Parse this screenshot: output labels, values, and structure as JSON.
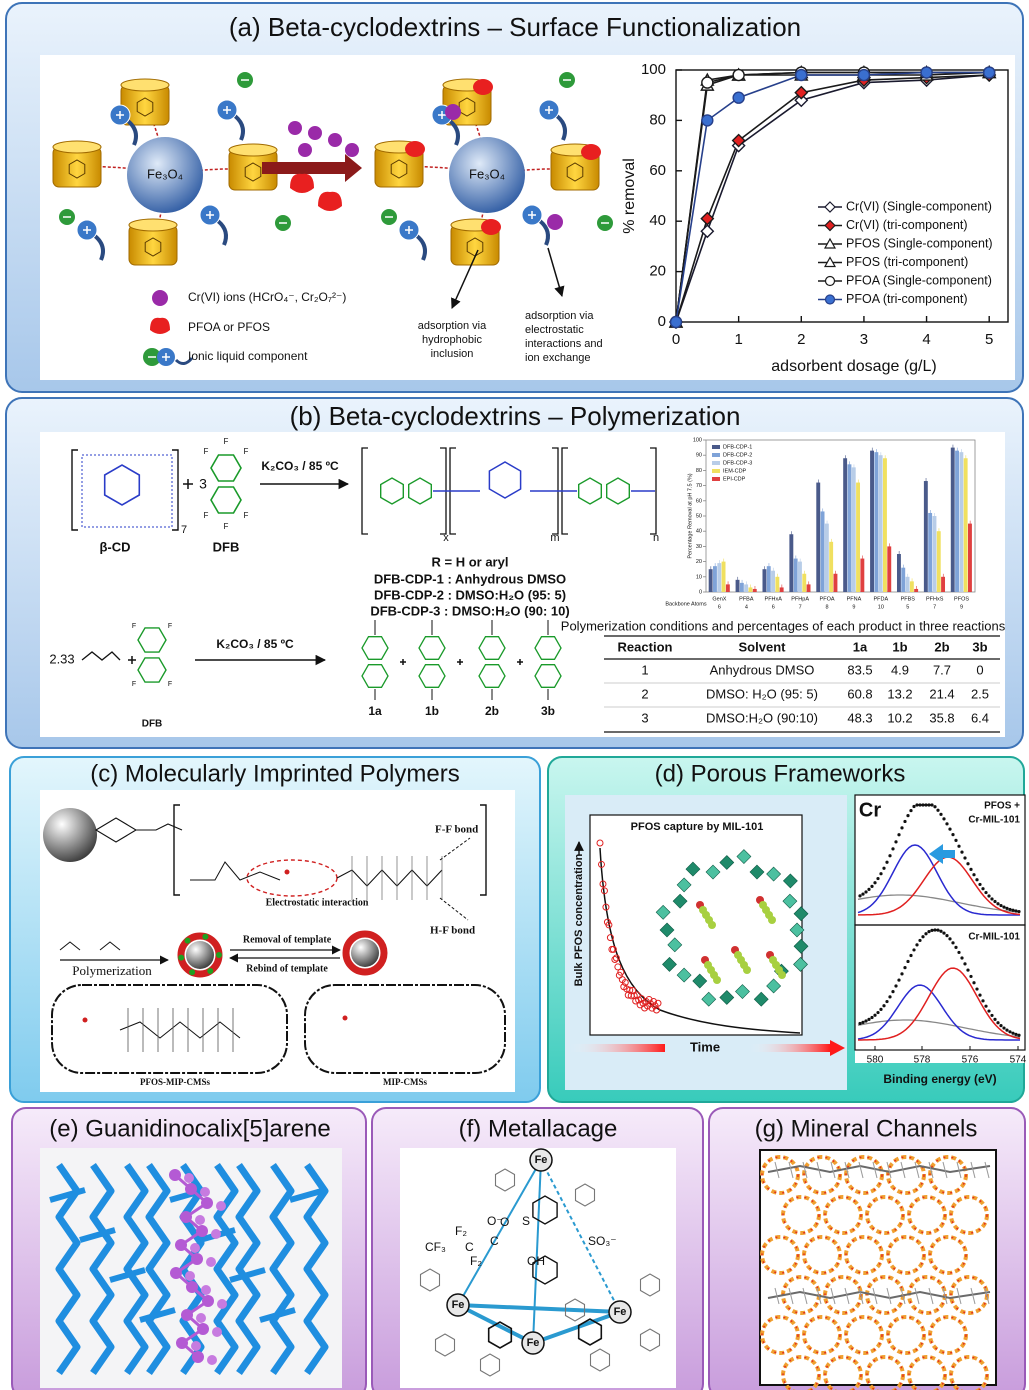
{
  "panels": {
    "a": {
      "title": "(a) Beta-cyclodextrins – Surface Functionalization",
      "core_label": "Fe₃O₄",
      "key": [
        "Cr(VI) ions (HCrO₄⁻, Cr₂O₇²⁻)",
        "PFOA or PFOS",
        "Ionic liquid component"
      ],
      "note_left": [
        "adsorption via",
        "hydrophobic",
        "inclusion"
      ],
      "note_right": [
        "adsorption via",
        "electrostatic",
        "interactions and",
        "ion exchange"
      ]
    },
    "b": {
      "title": "(b) Beta-cyclodextrins – Polymerization",
      "condition": "K₂CO₃ / 85 ºC",
      "reagent_1": "β-CD",
      "reagent_2": "DFB",
      "coefficient_1": "3",
      "coefficient_2": "2.33",
      "subscripts": [
        "7",
        "x",
        "m",
        "n"
      ],
      "atom_f": "F",
      "r_group": "R = H or aryl",
      "variants": [
        "DFB-CDP-1 : Anhydrous DMSO",
        "DFB-CDP-2 : DMSO:H₂O (95: 5)",
        "DFB-CDP-3 : DMSO:H₂O (90: 10)"
      ],
      "products": [
        "1a",
        "1b",
        "2b",
        "3b"
      ],
      "table": {
        "caption": "Polymerization conditions and percentages of each product in three reactions",
        "header": [
          "Reaction",
          "Solvent",
          "1a",
          "1b",
          "2b",
          "3b"
        ],
        "rows": [
          [
            1,
            "Anhydrous DMSO",
            83.5,
            4.9,
            7.7,
            0
          ],
          [
            2,
            "DMSO: H₂O (95: 5)",
            60.8,
            13.2,
            21.4,
            2.5
          ],
          [
            3,
            "DMSO:H₂O (90:10)",
            48.3,
            10.2,
            35.8,
            6.4
          ]
        ]
      }
    },
    "c": {
      "title": "(c) Molecularly Imprinted Polymers",
      "ff_bond": "F-F bond",
      "hf_bond": "H-F bond",
      "electrostatic": "Electrostatic interaction",
      "polymerization": "Polymerization",
      "removal": "Removal of template",
      "rebind": "Rebind of template",
      "left_product": "PFOS-MIP-CMSs",
      "right_product": "MIP-CMSs"
    },
    "d": {
      "title": "(d) Porous Frameworks",
      "inset_title": "PFOS capture by MIL-101",
      "inset_ylabel": "Bulk PFOS concentration",
      "inset_xlabel": "Time",
      "element": "Cr",
      "top_label": [
        "PFOS +",
        "Cr-MIL-101"
      ],
      "bottom_label": "Cr-MIL-101",
      "xps_ticks": [
        "580",
        "578",
        "576",
        "574"
      ],
      "xps_xlabel": "Binding energy  (eV)"
    },
    "e": {
      "title": "(e) Guanidinocalix[5]arene"
    },
    "f": {
      "title": "(f) Metallacage",
      "metal": "Fe",
      "sulfonate": "SO₃⁻",
      "chain_labels": [
        "CF₃",
        "F₂",
        "C",
        "F₂",
        "C",
        "O",
        "OH",
        "O⁻",
        "S"
      ]
    },
    "g": {
      "title": "(g) Mineral Channels"
    }
  },
  "chart_data": [
    {
      "type": "line",
      "xlabel": "adsorbent dosage (g/L)",
      "ylabel": "% removal",
      "x": [
        0,
        0.5,
        1,
        2,
        3,
        4,
        5
      ],
      "xlim": [
        0,
        5.3
      ],
      "ylim": [
        0,
        100
      ],
      "xticks": [
        0,
        1,
        2,
        3,
        4,
        5
      ],
      "yticks": [
        0,
        20,
        40,
        60,
        80,
        100
      ],
      "series": [
        {
          "name": "Cr(VI) (Single-component)",
          "color": "#1a1a2e",
          "marker": "diamond",
          "marker_fill": "#ffffff",
          "values": [
            0,
            36,
            70,
            88,
            95,
            96,
            98
          ]
        },
        {
          "name": "Cr(VI) (tri-component)",
          "color": "#1a1a1a",
          "marker": "diamond",
          "marker_fill": "#e02020",
          "values": [
            0,
            41,
            72,
            91,
            96,
            97,
            98
          ]
        },
        {
          "name": "PFOS (Single-component)",
          "color": "#1a1a1a",
          "marker": "triangle",
          "marker_fill": "#ffffff",
          "values": [
            0,
            96,
            98,
            98,
            98,
            98,
            99
          ]
        },
        {
          "name": "PFOS (tri-component)",
          "color": "#1a1a1a",
          "marker": "triangle",
          "marker_fill": "#ffffff",
          "values": [
            0,
            94,
            98,
            99,
            99,
            99,
            99
          ]
        },
        {
          "name": "PFOA (Single-component)",
          "color": "#1a1a1a",
          "marker": "circle",
          "marker_fill": "#ffffff",
          "values": [
            0,
            95,
            98,
            99,
            99,
            99,
            99
          ]
        },
        {
          "name": "PFOA (tri-component)",
          "color": "#27408b",
          "marker": "circle",
          "marker_fill": "#3a6fd0",
          "values": [
            0,
            80,
            89,
            98,
            98,
            99,
            99
          ]
        }
      ]
    },
    {
      "type": "bar",
      "ylabel": "Percentage Removal at pH 7.5 (%)",
      "categories": [
        "GenX",
        "PFBA",
        "PFHxA",
        "PFHpA",
        "PFOA",
        "PFNA",
        "PFDA",
        "PFBS",
        "PFHxS",
        "PFOS"
      ],
      "backbone_label": "Backbone Atoms",
      "backbone_atoms": [
        6,
        4,
        6,
        7,
        8,
        9,
        10,
        5,
        7,
        9
      ],
      "ylim": [
        0,
        100
      ],
      "yticks": [
        0,
        10,
        20,
        30,
        40,
        50,
        60,
        70,
        80,
        90,
        100
      ],
      "series": [
        {
          "name": "DFB-CDP-1",
          "color": "#4a5a8a",
          "values": [
            15,
            8,
            15,
            38,
            72,
            88,
            93,
            25,
            73,
            95
          ]
        },
        {
          "name": "DFB-CDP-2",
          "color": "#7fa3d8",
          "values": [
            17,
            6,
            17,
            22,
            53,
            84,
            92,
            16,
            52,
            93
          ]
        },
        {
          "name": "DFB-CDP-3",
          "color": "#b8cde8",
          "values": [
            19,
            5,
            14,
            20,
            45,
            82,
            90,
            10,
            50,
            92
          ]
        },
        {
          "name": "IEM-CDP",
          "color": "#f0e060",
          "values": [
            20,
            3,
            10,
            12,
            33,
            72,
            88,
            7,
            40,
            88
          ]
        },
        {
          "name": "EPI-CDP",
          "color": "#e04040",
          "values": [
            5,
            2,
            3,
            5,
            12,
            22,
            30,
            2,
            10,
            45
          ]
        }
      ]
    }
  ]
}
